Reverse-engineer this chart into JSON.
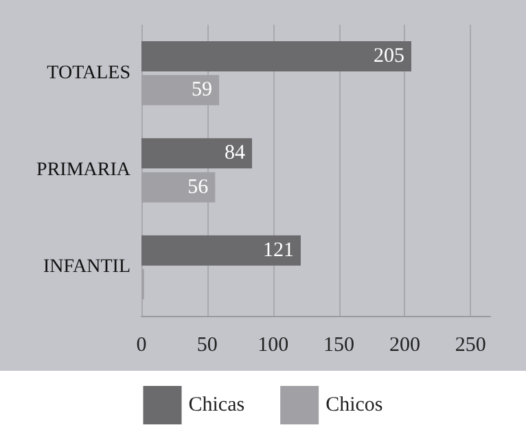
{
  "chart_data": {
    "type": "bar",
    "orientation": "horizontal",
    "categories": [
      "TOTALES",
      "PRIMARIA",
      "INFANTIL"
    ],
    "series": [
      {
        "name": "Chicas",
        "color": "#6b6b6d",
        "values": [
          205,
          84,
          121
        ],
        "value_labels": [
          "205",
          "84",
          "121"
        ]
      },
      {
        "name": "Chicos",
        "color": "#a1a1a5",
        "values": [
          59,
          56,
          2
        ],
        "value_labels": [
          "59",
          "56",
          null
        ]
      }
    ],
    "xlim": [
      0,
      265
    ],
    "xticks": [
      0,
      50,
      100,
      150,
      200,
      250
    ],
    "grid": "x",
    "legend": "bottom"
  }
}
